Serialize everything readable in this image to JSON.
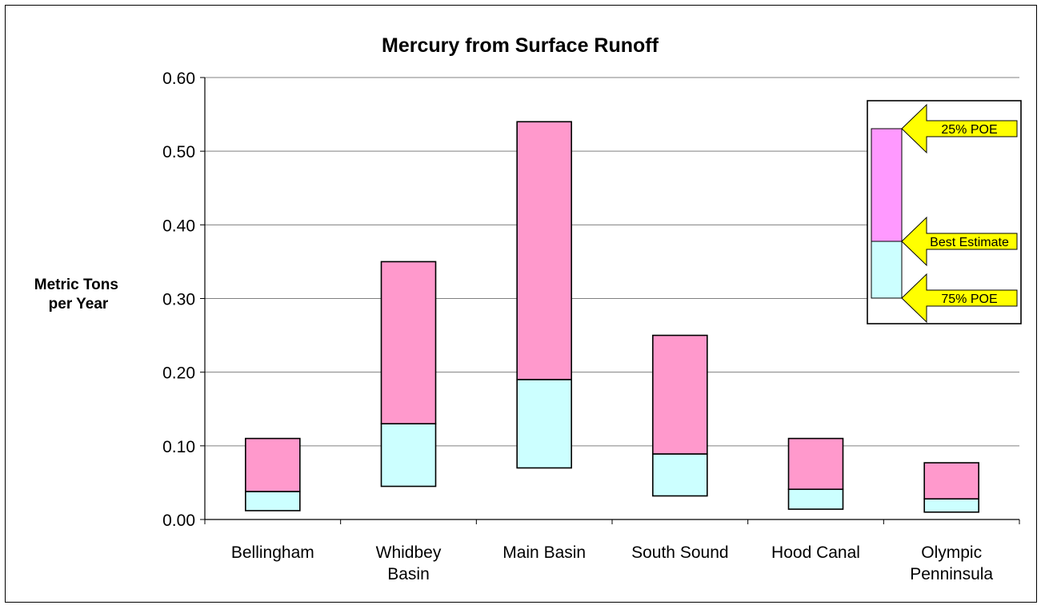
{
  "chart_data": {
    "type": "bar",
    "title": "Mercury from Surface Runoff",
    "ylabel": [
      "Metric Tons",
      "per Year"
    ],
    "ylim": [
      0,
      0.6
    ],
    "yticks": [
      "0.00",
      "0.10",
      "0.20",
      "0.30",
      "0.40",
      "0.50",
      "0.60"
    ],
    "ytick_values": [
      0,
      0.1,
      0.2,
      0.3,
      0.4,
      0.5,
      0.6
    ],
    "grid": true,
    "categories": [
      [
        "Bellingham"
      ],
      [
        "Whidbey",
        "Basin"
      ],
      [
        "Main Basin"
      ],
      [
        "South Sound"
      ],
      [
        "Hood Canal"
      ],
      [
        "Olympic",
        "Penninsula"
      ]
    ],
    "series": [
      {
        "name": "75% POE",
        "values": [
          0.012,
          0.045,
          0.07,
          0.032,
          0.014,
          0.01
        ]
      },
      {
        "name": "Best Estimate",
        "values": [
          0.038,
          0.13,
          0.19,
          0.089,
          0.041,
          0.028
        ]
      },
      {
        "name": "25% POE",
        "values": [
          0.11,
          0.35,
          0.54,
          0.25,
          0.11,
          0.077
        ]
      }
    ],
    "colors": {
      "lower": "#ccffff",
      "upper": "#ff99cc",
      "legend_upper": "#ff99ff",
      "arrow": "#ffff00"
    },
    "legend": {
      "position": "top-right",
      "labels": [
        "25% POE",
        "Best Estimate",
        "75% POE"
      ]
    }
  }
}
